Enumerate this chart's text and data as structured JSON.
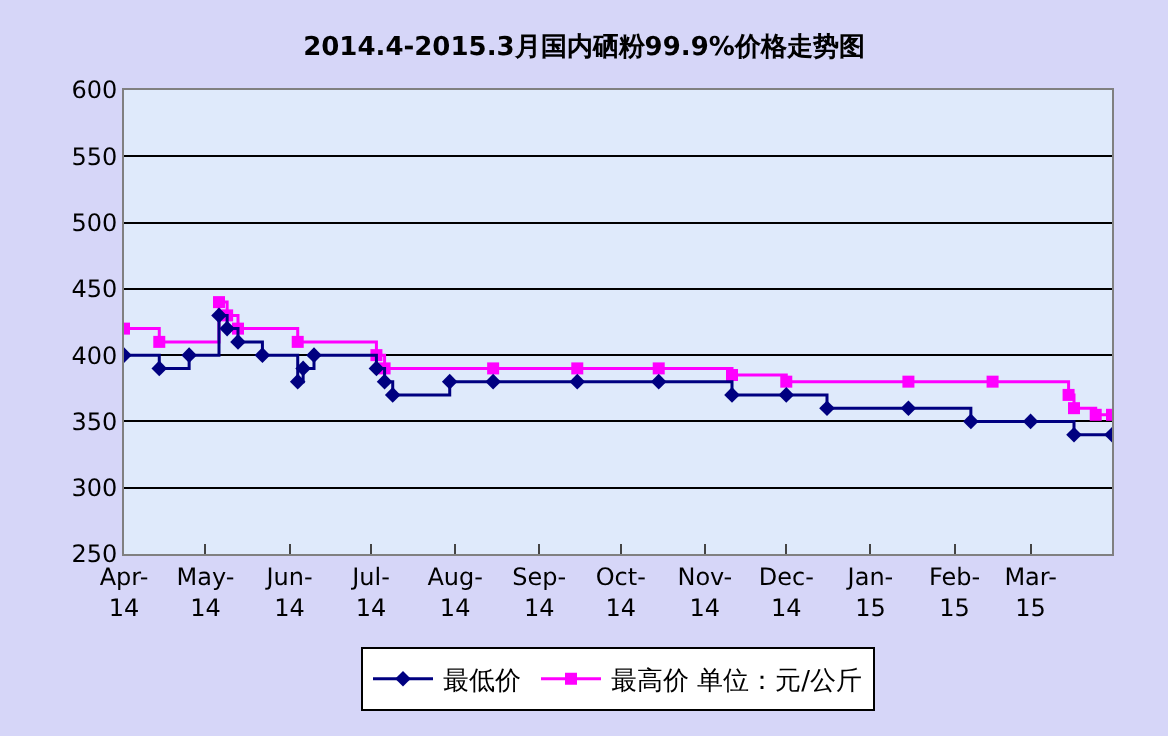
{
  "chart_data": {
    "type": "step",
    "title": "2014.4-2015.3月国内硒粉99.9%价格走势图",
    "xlim": [
      "2014-04-01",
      "2015-03-31"
    ],
    "xticks": [
      {
        "value": "2014-04-01",
        "label": "Apr-14"
      },
      {
        "value": "2014-05-01",
        "label": "May-14"
      },
      {
        "value": "2014-06-01",
        "label": "Jun-14"
      },
      {
        "value": "2014-07-01",
        "label": "Jul-14"
      },
      {
        "value": "2014-08-01",
        "label": "Aug-14"
      },
      {
        "value": "2014-09-01",
        "label": "Sep-14"
      },
      {
        "value": "2014-10-01",
        "label": "Oct-14"
      },
      {
        "value": "2014-11-01",
        "label": "Nov-14"
      },
      {
        "value": "2014-12-01",
        "label": "Dec-14"
      },
      {
        "value": "2015-01-01",
        "label": "Jan-15"
      },
      {
        "value": "2015-02-01",
        "label": "Feb-15"
      },
      {
        "value": "2015-03-01",
        "label": "Mar-15"
      }
    ],
    "ylim": [
      250,
      600
    ],
    "yticks": [
      250,
      300,
      350,
      400,
      450,
      500,
      550,
      600
    ],
    "grid": "y",
    "legend": "bottom",
    "series": [
      {
        "name": "最低价",
        "color": "#000080",
        "marker": "diamond",
        "x": [
          "2014-04-01",
          "2014-04-14",
          "2014-04-25",
          "2014-05-06",
          "2014-05-09",
          "2014-05-13",
          "2014-05-22",
          "2014-06-04",
          "2014-06-06",
          "2014-06-10",
          "2014-07-03",
          "2014-07-06",
          "2014-07-09",
          "2014-07-30",
          "2014-08-15",
          "2014-09-15",
          "2014-10-15",
          "2014-11-11",
          "2014-12-01",
          "2014-12-16",
          "2015-01-15",
          "2015-02-07",
          "2015-03-01",
          "2015-03-17",
          "2015-03-31"
        ],
        "values": [
          400,
          390,
          400,
          430,
          420,
          410,
          400,
          380,
          390,
          400,
          390,
          380,
          370,
          380,
          380,
          380,
          380,
          370,
          370,
          360,
          360,
          350,
          350,
          340,
          340
        ]
      },
      {
        "name": "最高价 单位：元/公斤",
        "color": "#ff00ff",
        "marker": "square",
        "x": [
          "2014-04-01",
          "2014-04-14",
          "2014-05-06",
          "2014-05-09",
          "2014-05-13",
          "2014-06-04",
          "2014-07-03",
          "2014-07-06",
          "2014-08-15",
          "2014-09-15",
          "2014-10-15",
          "2014-11-11",
          "2014-12-01",
          "2015-01-15",
          "2015-02-15",
          "2015-03-15",
          "2015-03-17",
          "2015-03-25",
          "2015-03-31"
        ],
        "values": [
          420,
          410,
          440,
          430,
          420,
          410,
          400,
          390,
          390,
          390,
          390,
          385,
          380,
          380,
          380,
          370,
          360,
          355,
          355
        ]
      }
    ]
  }
}
